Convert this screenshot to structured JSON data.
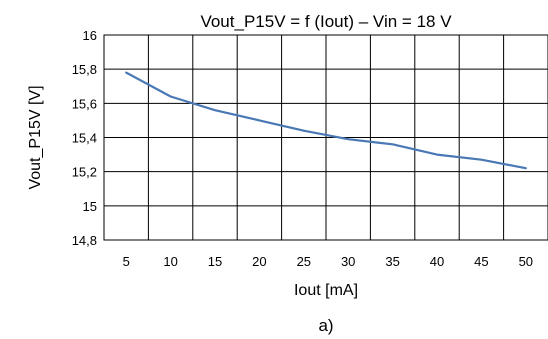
{
  "chart_data": {
    "type": "line",
    "title": "Vout_P15V = f (Iout) – Vin = 18 V",
    "xlabel": "Iout [mA]",
    "ylabel": "Vout_P15V [V]",
    "caption": "a)",
    "xlim": [
      2.5,
      52.5
    ],
    "ylim": [
      14.8,
      16
    ],
    "x_ticks": [
      5,
      10,
      15,
      20,
      25,
      30,
      35,
      40,
      45,
      50
    ],
    "x_tick_labels": [
      "5",
      "10",
      "15",
      "20",
      "25",
      "30",
      "35",
      "40",
      "45",
      "50"
    ],
    "y_ticks": [
      14.8,
      15.0,
      15.2,
      15.4,
      15.6,
      15.8,
      16.0
    ],
    "y_tick_labels": [
      "14,8",
      "15",
      "15,2",
      "15,4",
      "15,6",
      "15,8",
      "16"
    ],
    "grid": true,
    "series": [
      {
        "color": "#4a78b5",
        "x": [
          5,
          10,
          15,
          20,
          25,
          30,
          35,
          40,
          45,
          50
        ],
        "y": [
          15.78,
          15.64,
          15.56,
          15.5,
          15.44,
          15.39,
          15.36,
          15.3,
          15.27,
          15.22
        ]
      }
    ]
  }
}
